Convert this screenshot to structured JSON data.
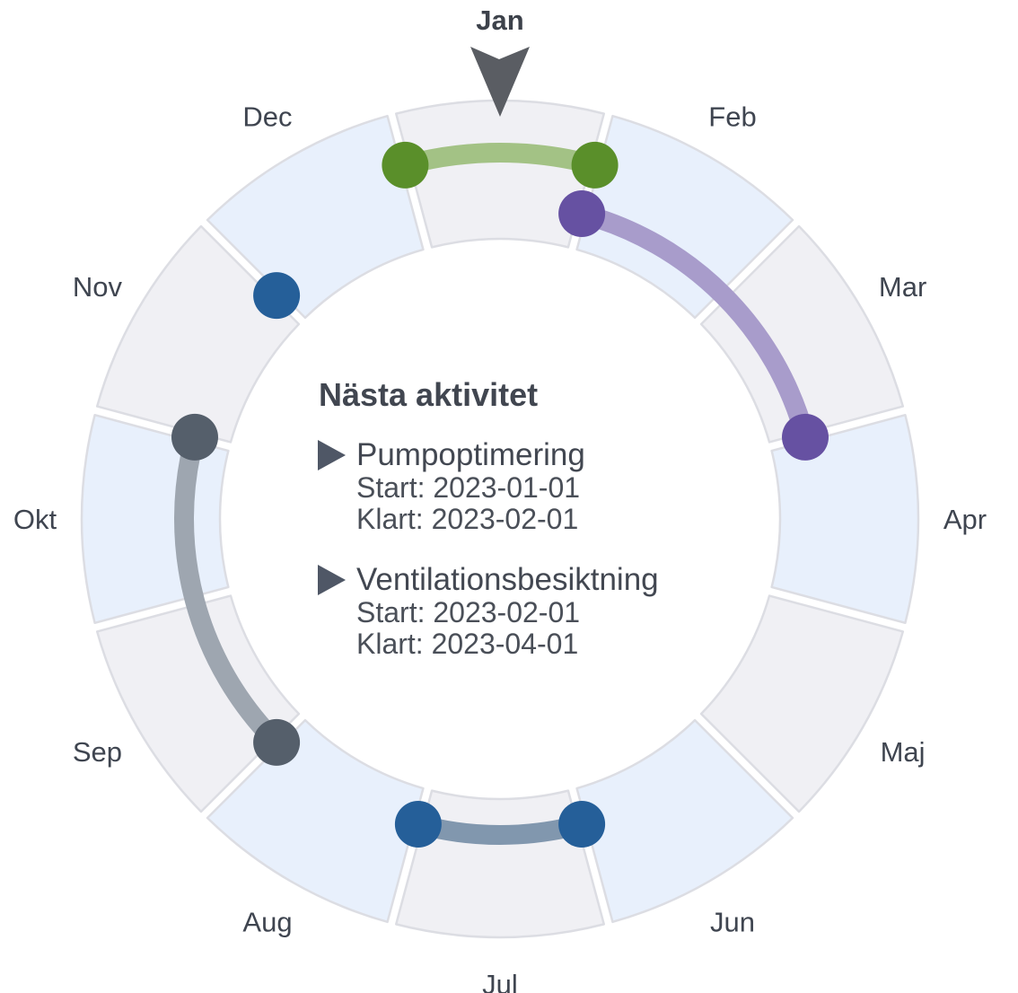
{
  "wheel": {
    "current_month": "Jan",
    "months": [
      {
        "label": "Jan",
        "shade": "gray"
      },
      {
        "label": "Feb",
        "shade": "blue"
      },
      {
        "label": "Mar",
        "shade": "gray"
      },
      {
        "label": "Apr",
        "shade": "blue"
      },
      {
        "label": "Maj",
        "shade": "gray"
      },
      {
        "label": "Jun",
        "shade": "blue"
      },
      {
        "label": "Jul",
        "shade": "gray"
      },
      {
        "label": "Aug",
        "shade": "blue"
      },
      {
        "label": "Sep",
        "shade": "gray"
      },
      {
        "label": "Okt",
        "shade": "blue"
      },
      {
        "label": "Nov",
        "shade": "gray"
      },
      {
        "label": "Dec",
        "shade": "blue"
      }
    ],
    "colors": {
      "segment_blue": "#e8f0fc",
      "segment_gray": "#f0f0f4",
      "segment_stroke": "#dcdde3",
      "pointer": "#5a5d63"
    }
  },
  "arcs": [
    {
      "start_month": 0.0,
      "end_month": 1.0,
      "track": "outer",
      "dot_color": "#5a8f2a",
      "line_color": "#a3c285"
    },
    {
      "start_month": 1.0,
      "end_month": 3.0,
      "track": "inner",
      "dot_color": "#6651a2",
      "line_color": "#a89ccb"
    },
    {
      "start_month": 6.0,
      "end_month": 7.0,
      "track": "inner",
      "dot_color": "#255f99",
      "line_color": "#8197ae"
    },
    {
      "start_month": 8.0,
      "end_month": 10.0,
      "track": "inner",
      "dot_color": "#555f6b",
      "line_color": "#9ea6b0"
    },
    {
      "start_month": 11.0,
      "end_month": 11.0,
      "track": "inner",
      "dot_color": "#255f99",
      "line_color": "#8197ae"
    }
  ],
  "center": {
    "title": "Nästa aktivitet",
    "activities": [
      {
        "name": "Pumpoptimering",
        "start": "Start: 2023-01-01",
        "end": "Klart: 2023-02-01"
      },
      {
        "name": "Ventilationsbesiktning",
        "start": "Start: 2023-02-01",
        "end": "Klart: 2023-04-01"
      }
    ],
    "marker_color": "#4f5766"
  }
}
